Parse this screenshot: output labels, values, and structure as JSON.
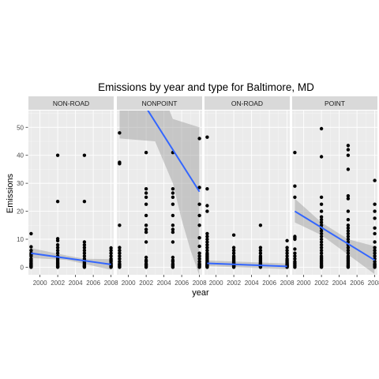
{
  "chart_data": {
    "type": "scatter",
    "title": "Emissions by year and type for Baltimore, MD",
    "xlabel": "year",
    "ylabel": "Emissions",
    "x_ticks": [
      2000,
      2002,
      2004,
      2006,
      2008
    ],
    "y_ticks": [
      0,
      10,
      20,
      30,
      40,
      50
    ],
    "xlim": [
      1998.7,
      2008.3
    ],
    "ylim": [
      -2.7,
      56
    ],
    "grid": true,
    "legend": "none",
    "colors": {
      "panel_bg": "#ebebeb",
      "grid_major": "#ffffff",
      "strip_bg": "#d9d9d9",
      "point": "#000000",
      "fit_line": "#3366ff",
      "ribbon": "#999999"
    },
    "panels": [
      {
        "name": "NON-ROAD",
        "points": [
          {
            "x": 1999,
            "y": [
              0,
              0.2,
              0.4,
              0.6,
              0.9,
              1.2,
              1.5,
              2,
              2.5,
              3,
              4,
              4.5,
              5,
              6,
              7.3,
              12
            ]
          },
          {
            "x": 2002,
            "y": [
              0,
              0.2,
              0.4,
              0.7,
              1,
              1.3,
              1.6,
              2,
              2.5,
              3,
              3.5,
              4,
              5,
              6,
              7,
              8,
              9.5,
              10.2,
              23.5,
              40
            ]
          },
          {
            "x": 2005,
            "y": [
              0,
              0.2,
              0.4,
              0.6,
              0.9,
              1.2,
              1.6,
              2,
              2.5,
              3,
              4,
              5,
              6,
              7,
              8,
              9,
              23.5,
              40
            ]
          },
          {
            "x": 2008,
            "y": [
              0,
              0.2,
              0.4,
              0.7,
              1,
              1.4,
              2,
              2.5,
              3,
              4,
              5,
              6,
              6.9
            ]
          }
        ],
        "fit": {
          "y_start": 5.0,
          "y_end": 1.0
        },
        "band": {
          "lower": [
            [
              1999,
              3.3
            ],
            [
              2003,
              2.6
            ],
            [
              2005,
              1.2
            ],
            [
              2008,
              -0.9
            ]
          ],
          "upper": [
            [
              1999,
              6.8
            ],
            [
              2003,
              4.2
            ],
            [
              2005,
              3.0
            ],
            [
              2008,
              2.9
            ]
          ]
        }
      },
      {
        "name": "NONPOINT",
        "points": [
          {
            "x": 1999,
            "y": [
              0,
              0.4,
              0.8,
              1.2,
              2,
              3,
              4,
              5,
              6,
              7,
              15,
              37,
              37.5,
              48
            ]
          },
          {
            "x": 2002,
            "y": [
              0,
              0.4,
              0.8,
              1.2,
              2,
              2.5,
              3.5,
              9,
              12.5,
              13.5,
              15,
              18.5,
              22.5,
              25,
              26.5,
              28,
              41
            ]
          },
          {
            "x": 2005,
            "y": [
              0,
              0.4,
              0.8,
              1.2,
              2,
              2.5,
              3.5,
              9,
              12.5,
              13.5,
              15,
              18.5,
              22.5,
              25,
              26.5,
              28,
              41
            ]
          },
          {
            "x": 2008,
            "y": [
              0,
              0.4,
              0.8,
              1.2,
              2,
              3,
              4,
              5,
              7.5,
              10.5,
              15,
              18.5,
              22.5,
              28.5,
              46
            ]
          }
        ],
        "fit": {
          "y_start": 72.0,
          "y_end": 27.0
        },
        "band": {
          "lower": [
            [
              1999,
              46
            ],
            [
              2003,
              45
            ],
            [
              2005,
              30
            ],
            [
              2006,
              17
            ],
            [
              2007,
              6
            ],
            [
              2008,
              -3
            ]
          ],
          "upper": [
            [
              1999,
              100
            ],
            [
              2005,
              53
            ],
            [
              2008,
              50
            ]
          ]
        }
      },
      {
        "name": "ON-ROAD",
        "points": [
          {
            "x": 1999,
            "y": [
              0,
              0.2,
              0.4,
              0.6,
              0.8,
              1,
              1.3,
              1.6,
              2,
              2.5,
              3,
              3.5,
              4,
              4.5,
              5,
              6,
              7,
              8,
              9,
              10,
              11,
              12,
              20,
              22,
              28,
              46.5
            ]
          },
          {
            "x": 2002,
            "y": [
              0,
              0.2,
              0.4,
              0.6,
              0.8,
              1,
              1.3,
              1.6,
              2,
              2.5,
              3,
              3.5,
              4,
              5,
              6,
              7,
              11.5
            ]
          },
          {
            "x": 2005,
            "y": [
              0,
              0.2,
              0.4,
              0.6,
              0.8,
              1,
              1.3,
              1.6,
              2,
              2.5,
              3,
              3.5,
              4,
              5,
              6,
              7,
              15
            ]
          },
          {
            "x": 2008,
            "y": [
              0,
              0.2,
              0.4,
              0.6,
              0.8,
              1,
              1.3,
              1.6,
              2,
              2.5,
              3,
              4,
              5,
              6,
              7,
              9.5
            ]
          }
        ],
        "fit": {
          "y_start": 1.4,
          "y_end": 0.3
        },
        "band": {
          "lower": [
            [
              1999,
              0.4
            ],
            [
              2008,
              -0.7
            ]
          ],
          "upper": [
            [
              1999,
              2.4
            ],
            [
              2008,
              1.3
            ]
          ]
        }
      },
      {
        "name": "POINT",
        "points": [
          {
            "x": 1999,
            "y": [
              0,
              0.5,
              1,
              1.5,
              2,
              3,
              4,
              5,
              6.5,
              10,
              10.5,
              11,
              25,
              29,
              41
            ]
          },
          {
            "x": 2002,
            "y": [
              0,
              0.3,
              0.6,
              1,
              1.5,
              2,
              2.5,
              3,
              3.5,
              4,
              5,
              6,
              7,
              8,
              9,
              10,
              11,
              12,
              13,
              14,
              15,
              16,
              17,
              18,
              20,
              22.5,
              25,
              39.5,
              49.5
            ]
          },
          {
            "x": 2005,
            "y": [
              0,
              0.3,
              0.6,
              1,
              1.5,
              2,
              2.5,
              3,
              3.5,
              4,
              5,
              6,
              7,
              8,
              9,
              10,
              11,
              12,
              13,
              14,
              15,
              17,
              20,
              24.5,
              25.5,
              35,
              40,
              42,
              43.5
            ]
          },
          {
            "x": 2008,
            "y": [
              0,
              0.4,
              0.8,
              1.2,
              2,
              3,
              4,
              5,
              6,
              7,
              9,
              12,
              14,
              17.5,
              20,
              22.5,
              31
            ]
          }
        ],
        "fit": {
          "y_start": 20.0,
          "y_end": 2.5
        },
        "band": {
          "lower": [
            [
              1999,
              16
            ],
            [
              2002,
              11.5
            ],
            [
              2005,
              4.5
            ],
            [
              2008,
              -2.5
            ]
          ],
          "upper": [
            [
              1999,
              24.5
            ],
            [
              2002,
              16
            ],
            [
              2005,
              10
            ],
            [
              2008,
              7.5
            ]
          ]
        }
      }
    ]
  }
}
